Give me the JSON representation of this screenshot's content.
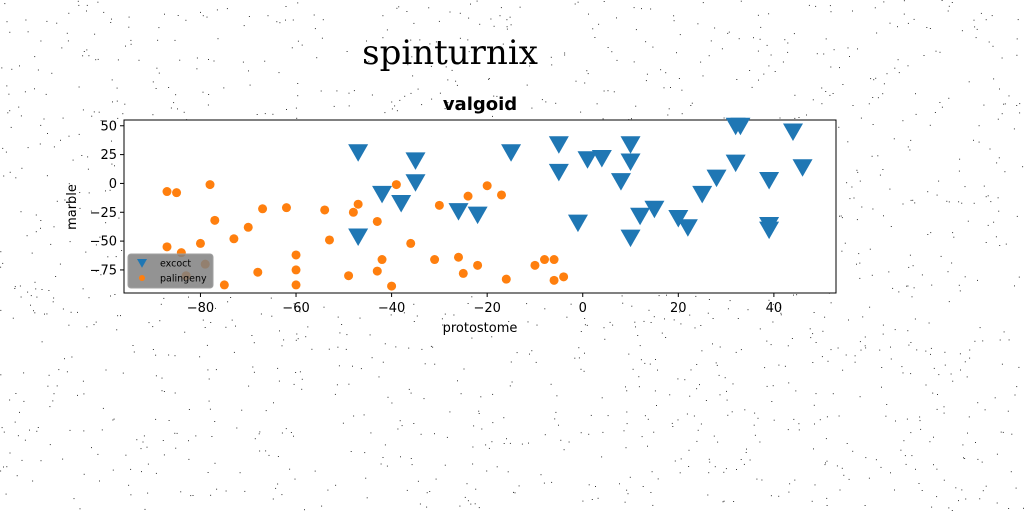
{
  "chart_data": {
    "type": "scatter",
    "suptitle": "spinturnix",
    "title": "valgoid",
    "xlabel": "protostome",
    "ylabel": "marble",
    "xlim": [
      -96,
      53
    ],
    "ylim": [
      -95,
      55
    ],
    "xticks": [
      -80,
      -60,
      -40,
      -20,
      0,
      20,
      40
    ],
    "yticks": [
      -75,
      -50,
      -25,
      0,
      25,
      50
    ],
    "legend_position": "lower-left",
    "grid": false,
    "series": [
      {
        "name": "excoct",
        "color": "#1f77b4",
        "marker": "triangle-down",
        "points": [
          [
            -47,
            27
          ],
          [
            -47,
            -46
          ],
          [
            -42,
            -9
          ],
          [
            -38,
            -17
          ],
          [
            -35,
            20
          ],
          [
            -35,
            1
          ],
          [
            -26,
            -24
          ],
          [
            -22,
            -27
          ],
          [
            -15,
            27
          ],
          [
            -5,
            34
          ],
          [
            -5,
            10
          ],
          [
            -1,
            -34
          ],
          [
            1,
            21
          ],
          [
            4,
            22
          ],
          [
            8,
            2
          ],
          [
            10,
            34
          ],
          [
            10,
            19
          ],
          [
            10,
            -47
          ],
          [
            12,
            -28
          ],
          [
            15,
            -22
          ],
          [
            20,
            -30
          ],
          [
            22,
            -38
          ],
          [
            25,
            -9
          ],
          [
            28,
            5
          ],
          [
            32,
            50
          ],
          [
            33,
            50
          ],
          [
            32,
            18
          ],
          [
            39,
            3
          ],
          [
            39,
            -36
          ],
          [
            39,
            -40
          ],
          [
            44,
            45
          ],
          [
            46,
            14
          ]
        ]
      },
      {
        "name": "palingeny",
        "color": "#ff7f0e",
        "marker": "circle",
        "points": [
          [
            -87,
            -7
          ],
          [
            -85,
            -8
          ],
          [
            -87,
            -55
          ],
          [
            -84,
            -60
          ],
          [
            -83,
            -80
          ],
          [
            -80,
            -52
          ],
          [
            -79,
            -70
          ],
          [
            -78,
            -1
          ],
          [
            -77,
            -32
          ],
          [
            -75,
            -88
          ],
          [
            -73,
            -48
          ],
          [
            -70,
            -38
          ],
          [
            -68,
            -77
          ],
          [
            -67,
            -22
          ],
          [
            -62,
            -21
          ],
          [
            -60,
            -62
          ],
          [
            -60,
            -75
          ],
          [
            -60,
            -88
          ],
          [
            -54,
            -23
          ],
          [
            -53,
            -49
          ],
          [
            -49,
            -80
          ],
          [
            -48,
            -25
          ],
          [
            -47,
            -18
          ],
          [
            -43,
            -33
          ],
          [
            -43,
            -76
          ],
          [
            -42,
            -66
          ],
          [
            -40,
            -89
          ],
          [
            -39,
            -1
          ],
          [
            -36,
            -52
          ],
          [
            -31,
            -66
          ],
          [
            -30,
            -19
          ],
          [
            -26,
            -64
          ],
          [
            -25,
            -78
          ],
          [
            -24,
            -11
          ],
          [
            -22,
            -71
          ],
          [
            -20,
            -2
          ],
          [
            -17,
            -10
          ],
          [
            -16,
            -83
          ],
          [
            -10,
            -71
          ],
          [
            -8,
            -66
          ],
          [
            -6,
            -66
          ],
          [
            -6,
            -84
          ],
          [
            -4,
            -81
          ]
        ]
      }
    ]
  }
}
